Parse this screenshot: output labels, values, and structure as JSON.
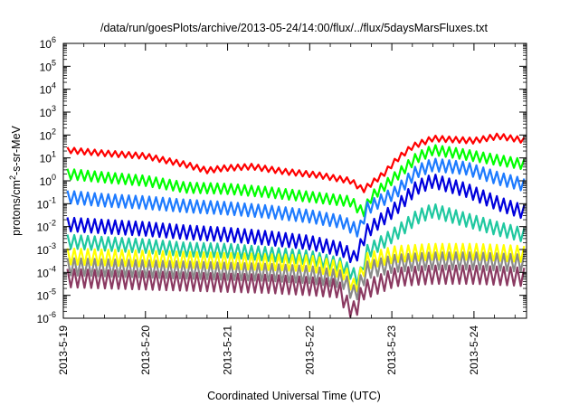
{
  "chart_data": {
    "type": "line",
    "title": "/data/run/goesPlots/archive/2013-05-24/14:00/flux/../flux/5daysMarsFluxes.txt",
    "xlabel": "Coordinated Universal Time (UTC)",
    "ylabel": {
      "pre": "protons/cm",
      "sup": "2",
      "post": "-s-sr-MeV"
    },
    "yscale": "log",
    "ylim_exp": [
      -6,
      6
    ],
    "y_ticks": [
      {
        "base": "10",
        "exp": "-6",
        "e": -6
      },
      {
        "base": "10",
        "exp": "-5",
        "e": -5
      },
      {
        "base": "10",
        "exp": "-4",
        "e": -4
      },
      {
        "base": "10",
        "exp": "-3",
        "e": -3
      },
      {
        "base": "10",
        "exp": "-2",
        "e": -2
      },
      {
        "base": "10",
        "exp": "-1",
        "e": -1
      },
      {
        "base": "10",
        "exp": "0",
        "e": 0
      },
      {
        "base": "10",
        "exp": "1",
        "e": 1
      },
      {
        "base": "10",
        "exp": "2",
        "e": 2
      },
      {
        "base": "10",
        "exp": "3",
        "e": 3
      },
      {
        "base": "10",
        "exp": "4",
        "e": 4
      },
      {
        "base": "10",
        "exp": "5",
        "e": 5
      },
      {
        "base": "10",
        "exp": "6",
        "e": 6
      }
    ],
    "xlim_days": [
      0,
      5.64
    ],
    "x_ticks": [
      {
        "label": "2013-5-19",
        "d": 0
      },
      {
        "label": "2013-5-20",
        "d": 1
      },
      {
        "label": "2013-5-21",
        "d": 2
      },
      {
        "label": "2013-5-22",
        "d": 3
      },
      {
        "label": "2013-5-23",
        "d": 4
      },
      {
        "label": "2013-5-24",
        "d": 5
      }
    ],
    "grid": false,
    "legend": "none",
    "sawtooth_period_days": 0.083,
    "series": [
      {
        "color": "#ff0000",
        "envelope": [
          [
            0.05,
            1.34
          ],
          [
            0.5,
            1.2
          ],
          [
            1.0,
            1.08
          ],
          [
            1.5,
            0.7
          ],
          [
            1.75,
            0.45
          ],
          [
            1.95,
            0.55
          ],
          [
            2.3,
            0.62
          ],
          [
            2.7,
            0.4
          ],
          [
            3.1,
            0.25
          ],
          [
            3.5,
            0.0
          ],
          [
            3.65,
            -0.4
          ],
          [
            3.9,
            0.3
          ],
          [
            4.05,
            0.9
          ],
          [
            4.25,
            1.5
          ],
          [
            4.5,
            1.85
          ],
          [
            5.0,
            1.75
          ],
          [
            5.3,
            1.95
          ],
          [
            5.64,
            1.75
          ]
        ],
        "amp": 0.25
      },
      {
        "color": "#00ff00",
        "envelope": [
          [
            0.05,
            0.3
          ],
          [
            0.5,
            0.15
          ],
          [
            1.0,
            0.0
          ],
          [
            1.5,
            -0.3
          ],
          [
            2.0,
            -0.35
          ],
          [
            2.5,
            -0.5
          ],
          [
            3.0,
            -0.7
          ],
          [
            3.5,
            -0.9
          ],
          [
            3.65,
            -1.4
          ],
          [
            3.75,
            -0.7
          ],
          [
            4.05,
            0.2
          ],
          [
            4.3,
            1.0
          ],
          [
            4.5,
            1.35
          ],
          [
            4.8,
            1.2
          ],
          [
            5.3,
            0.9
          ],
          [
            5.64,
            0.7
          ]
        ],
        "amp": 0.45
      },
      {
        "color": "#1e7bff",
        "envelope": [
          [
            0.05,
            -0.7
          ],
          [
            0.5,
            -0.85
          ],
          [
            1.0,
            -0.95
          ],
          [
            1.5,
            -1.1
          ],
          [
            2.0,
            -1.2
          ],
          [
            2.5,
            -1.35
          ],
          [
            3.0,
            -1.55
          ],
          [
            3.4,
            -1.8
          ],
          [
            3.6,
            -2.2
          ],
          [
            3.7,
            -1.2
          ],
          [
            4.05,
            -0.5
          ],
          [
            4.3,
            0.4
          ],
          [
            4.5,
            0.7
          ],
          [
            4.9,
            0.55
          ],
          [
            5.3,
            0.1
          ],
          [
            5.64,
            -0.2
          ]
        ],
        "amp": 0.55
      },
      {
        "color": "#0000dd",
        "envelope": [
          [
            0.05,
            -1.9
          ],
          [
            0.5,
            -2.0
          ],
          [
            1.0,
            -2.1
          ],
          [
            1.5,
            -2.25
          ],
          [
            2.0,
            -2.35
          ],
          [
            2.5,
            -2.5
          ],
          [
            3.0,
            -2.7
          ],
          [
            3.4,
            -3.0
          ],
          [
            3.55,
            -3.4
          ],
          [
            3.7,
            -2.2
          ],
          [
            4.05,
            -1.2
          ],
          [
            4.3,
            -0.3
          ],
          [
            4.5,
            0.0
          ],
          [
            4.9,
            -0.4
          ],
          [
            5.3,
            -1.0
          ],
          [
            5.64,
            -1.4
          ]
        ],
        "amp": 0.6
      },
      {
        "color": "#20c8a0",
        "envelope": [
          [
            0.05,
            -2.65
          ],
          [
            0.5,
            -2.75
          ],
          [
            1.0,
            -2.85
          ],
          [
            1.5,
            -3.0
          ],
          [
            2.0,
            -3.05
          ],
          [
            2.5,
            -3.2
          ],
          [
            3.0,
            -3.35
          ],
          [
            3.4,
            -3.7
          ],
          [
            3.6,
            -4.3
          ],
          [
            3.7,
            -3.1
          ],
          [
            4.05,
            -2.3
          ],
          [
            4.3,
            -1.6
          ],
          [
            4.5,
            -1.3
          ],
          [
            4.9,
            -1.7
          ],
          [
            5.3,
            -2.1
          ],
          [
            5.64,
            -2.4
          ]
        ],
        "amp": 0.6
      },
      {
        "color": "#ffff00",
        "envelope": [
          [
            0.05,
            -3.3
          ],
          [
            0.5,
            -3.35
          ],
          [
            1.0,
            -3.4
          ],
          [
            1.5,
            -3.45
          ],
          [
            2.0,
            -3.5
          ],
          [
            2.5,
            -3.55
          ],
          [
            3.0,
            -3.6
          ],
          [
            3.4,
            -3.9
          ],
          [
            3.55,
            -4.7
          ],
          [
            3.7,
            -3.5
          ],
          [
            4.05,
            -3.2
          ],
          [
            4.5,
            -3.1
          ],
          [
            5.0,
            -3.1
          ],
          [
            5.64,
            -3.2
          ]
        ],
        "amp": 0.7
      },
      {
        "color": "#8a8a8a",
        "envelope": [
          [
            0.05,
            -3.75
          ],
          [
            0.5,
            -3.8
          ],
          [
            1.0,
            -3.85
          ],
          [
            1.5,
            -3.9
          ],
          [
            2.0,
            -3.95
          ],
          [
            2.5,
            -4.0
          ],
          [
            3.0,
            -4.1
          ],
          [
            3.4,
            -4.3
          ],
          [
            3.55,
            -5.0
          ],
          [
            3.7,
            -3.9
          ],
          [
            4.05,
            -3.6
          ],
          [
            4.5,
            -3.5
          ],
          [
            5.0,
            -3.5
          ],
          [
            5.64,
            -3.6
          ]
        ],
        "amp": 0.75
      },
      {
        "color": "#8b3a62",
        "envelope": [
          [
            0.05,
            -4.25
          ],
          [
            0.5,
            -4.3
          ],
          [
            1.0,
            -4.35
          ],
          [
            1.5,
            -4.4
          ],
          [
            2.0,
            -4.45
          ],
          [
            2.5,
            -4.5
          ],
          [
            3.0,
            -4.6
          ],
          [
            3.35,
            -4.7
          ],
          [
            3.45,
            -5.4
          ],
          [
            3.55,
            -5.7
          ],
          [
            3.65,
            -4.8
          ],
          [
            4.05,
            -4.2
          ],
          [
            4.5,
            -4.1
          ],
          [
            5.0,
            -4.1
          ],
          [
            5.64,
            -4.2
          ]
        ],
        "amp": 0.8
      }
    ]
  }
}
